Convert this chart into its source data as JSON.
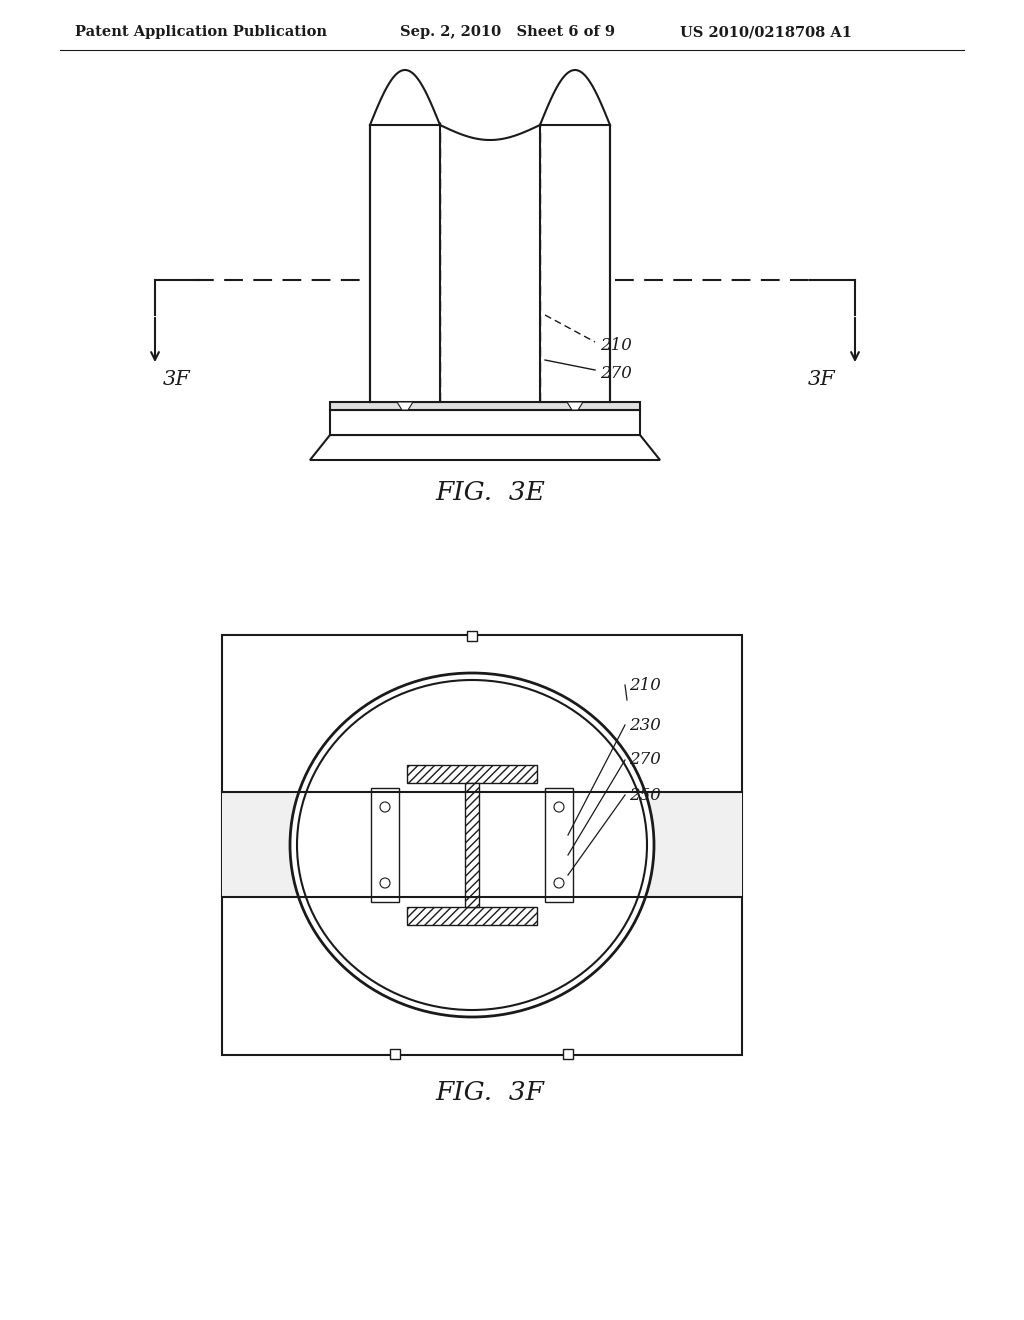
{
  "background_color": "#ffffff",
  "header_left": "Patent Application Publication",
  "header_mid": "Sep. 2, 2010   Sheet 6 of 9",
  "header_right": "US 2010/0218708 A1",
  "fig3e_label": "FIG.  3E",
  "fig3f_label": "FIG.  3F",
  "label_210": "210",
  "label_230": "230",
  "label_250": "250",
  "label_270": "270",
  "label_3F_left": "3F",
  "label_3F_right": "3F",
  "line_color": "#1a1a1a",
  "text_color": "#1a1a1a"
}
